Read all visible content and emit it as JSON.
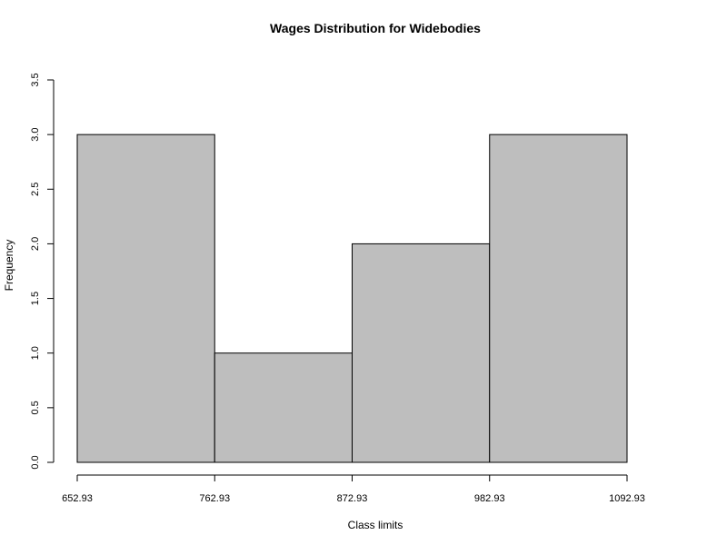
{
  "chart_data": {
    "type": "bar",
    "subtype": "histogram",
    "title": "Wages Distribution for Widebodies",
    "xlabel": "Class limits",
    "ylabel": "Frequency",
    "bins": [
      {
        "from": 652.93,
        "to": 762.93,
        "value": 3
      },
      {
        "from": 762.93,
        "to": 872.93,
        "value": 1
      },
      {
        "from": 872.93,
        "to": 982.93,
        "value": 2
      },
      {
        "from": 982.93,
        "to": 1092.93,
        "value": 3
      }
    ],
    "x_ticks": [
      "652.93",
      "762.93",
      "872.93",
      "982.93",
      "1092.93"
    ],
    "y_ticks": [
      "0.0",
      "0.5",
      "1.0",
      "1.5",
      "2.0",
      "2.5",
      "3.0",
      "3.5"
    ],
    "xlim": [
      652.93,
      1092.93
    ],
    "ylim": [
      0,
      3.5
    ],
    "grid": false,
    "bar_color": "#bebebe",
    "edge_color": "#000000"
  }
}
